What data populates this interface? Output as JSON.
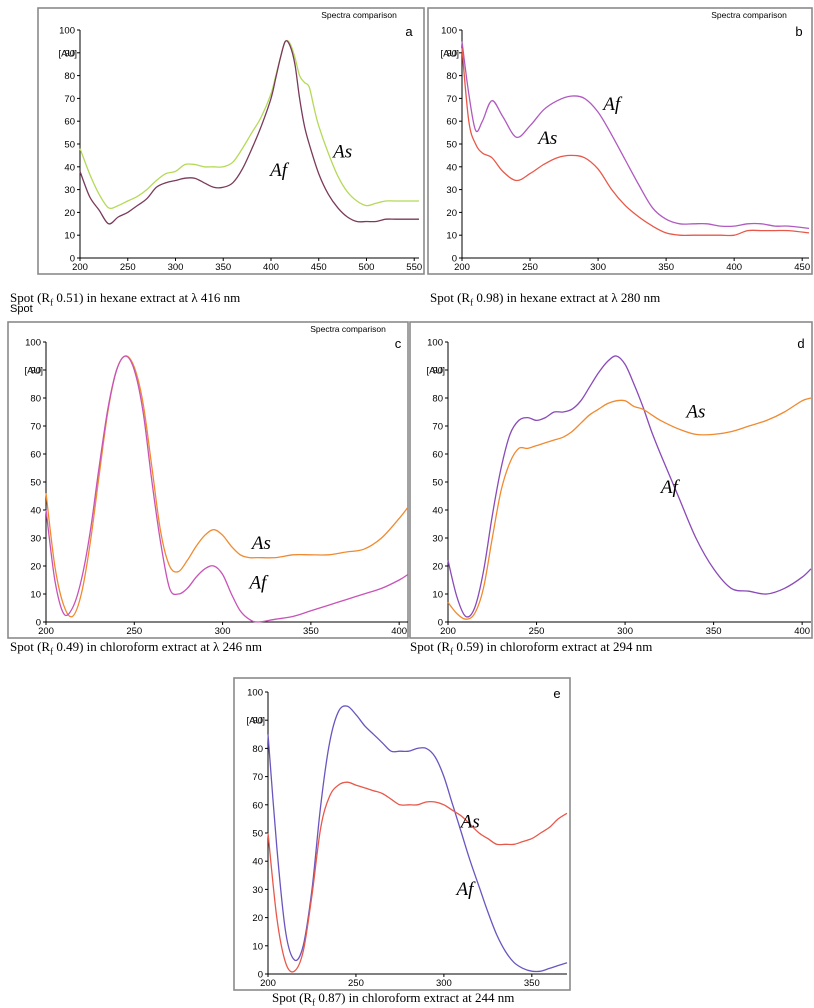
{
  "stray_label": "Spot",
  "chart_data": [
    {
      "type": "line",
      "letter": "a",
      "title": "Spectra comparison",
      "ylabel": "[AU]",
      "xlim": [
        200,
        555
      ],
      "ylim": [
        0,
        100
      ],
      "xticks": [
        200,
        250,
        300,
        350,
        400,
        450,
        500,
        550
      ],
      "yticks": [
        0,
        10,
        20,
        30,
        40,
        50,
        60,
        70,
        80,
        90,
        100
      ],
      "caption": {
        "pre": "Spot (R",
        "sub": "f",
        "post": " 0.51) in hexane extract at λ 416 nm"
      },
      "series": [
        {
          "name": "As",
          "color": "#b5d957",
          "x": [
            200,
            210,
            220,
            230,
            240,
            250,
            260,
            270,
            280,
            290,
            300,
            310,
            320,
            330,
            340,
            350,
            360,
            370,
            380,
            390,
            400,
            405,
            410,
            415,
            420,
            425,
            430,
            435,
            440,
            445,
            450,
            460,
            470,
            480,
            490,
            500,
            510,
            520,
            530,
            540,
            555
          ],
          "y": [
            48,
            37,
            28,
            22,
            23,
            25,
            27,
            30,
            34,
            37,
            38,
            41,
            41,
            40,
            40,
            40,
            42,
            48,
            55,
            62,
            72,
            80,
            88,
            95,
            94,
            88,
            80,
            77,
            75,
            66,
            58,
            46,
            36,
            29,
            25,
            23,
            24,
            25,
            25,
            25,
            25
          ]
        },
        {
          "name": "Af",
          "color": "#7a3a5a",
          "x": [
            200,
            210,
            220,
            230,
            240,
            250,
            260,
            270,
            280,
            290,
            300,
            310,
            320,
            330,
            340,
            350,
            360,
            370,
            380,
            390,
            400,
            405,
            410,
            415,
            420,
            425,
            430,
            435,
            440,
            450,
            460,
            470,
            480,
            490,
            500,
            510,
            520,
            530,
            540,
            555
          ],
          "y": [
            38,
            27,
            21,
            15,
            18,
            20,
            23,
            26,
            31,
            33,
            34,
            35,
            35,
            33,
            31,
            31,
            33,
            39,
            48,
            58,
            70,
            79,
            88,
            95,
            93,
            85,
            70,
            58,
            50,
            37,
            28,
            22,
            18,
            16,
            16,
            16,
            17,
            17,
            17,
            17
          ]
        }
      ],
      "annotations": [
        {
          "text": "As",
          "x": 475,
          "y": 44
        },
        {
          "text": "Af",
          "x": 408,
          "y": 36
        }
      ]
    },
    {
      "type": "line",
      "letter": "b",
      "title": "Spectra comparison",
      "ylabel": "[AU]",
      "xlim": [
        200,
        455
      ],
      "ylim": [
        0,
        100
      ],
      "xticks": [
        200,
        250,
        300,
        350,
        400,
        450
      ],
      "yticks": [
        0,
        10,
        20,
        30,
        40,
        50,
        60,
        70,
        80,
        90,
        100
      ],
      "caption": {
        "pre": "Spot (R",
        "sub": "f",
        "post": " 0.98) in hexane extract at λ 280 nm"
      },
      "series": [
        {
          "name": "Af",
          "color": "#b05ac0",
          "x": [
            200,
            205,
            210,
            215,
            222,
            230,
            240,
            250,
            260,
            270,
            280,
            290,
            300,
            310,
            320,
            330,
            340,
            350,
            360,
            370,
            380,
            390,
            400,
            410,
            420,
            430,
            440,
            455
          ],
          "y": [
            95,
            72,
            56,
            60,
            69,
            62,
            53,
            58,
            65,
            69,
            71,
            70,
            64,
            54,
            43,
            32,
            22,
            17,
            15,
            15,
            15,
            14,
            14,
            15,
            15,
            14,
            14,
            13
          ]
        },
        {
          "name": "As",
          "color": "#e8584a",
          "x": [
            200,
            205,
            210,
            215,
            222,
            230,
            240,
            250,
            260,
            270,
            280,
            290,
            300,
            310,
            320,
            330,
            340,
            350,
            360,
            370,
            380,
            390,
            400,
            410,
            420,
            430,
            440,
            455
          ],
          "y": [
            92,
            60,
            50,
            46,
            44,
            38,
            34,
            37,
            41,
            44,
            45,
            44,
            39,
            30,
            23,
            18,
            14,
            11,
            10,
            10,
            10,
            10,
            10,
            12,
            12,
            12,
            12,
            11
          ]
        }
      ],
      "annotations": [
        {
          "text": "Af",
          "x": 310,
          "y": 65
        },
        {
          "text": "As",
          "x": 263,
          "y": 50
        }
      ]
    },
    {
      "type": "line",
      "letter": "c",
      "title": "Spectra comparison",
      "ylabel": "[AU]",
      "xlim": [
        200,
        405
      ],
      "ylim": [
        0,
        100
      ],
      "xticks": [
        200,
        250,
        300,
        350,
        400
      ],
      "yticks": [
        0,
        10,
        20,
        30,
        40,
        50,
        60,
        70,
        80,
        90,
        100
      ],
      "caption": {
        "pre": "Spot (R",
        "sub": "f",
        "post": " 0.49) in chloroform extract at λ 246 nm"
      },
      "series": [
        {
          "name": "As",
          "color": "#f08a30",
          "x": [
            200,
            205,
            210,
            215,
            220,
            225,
            230,
            235,
            240,
            245,
            250,
            255,
            260,
            265,
            270,
            275,
            280,
            285,
            290,
            295,
            300,
            305,
            310,
            315,
            320,
            330,
            340,
            350,
            360,
            370,
            380,
            390,
            400,
            405
          ],
          "y": [
            46,
            20,
            6,
            2,
            10,
            28,
            52,
            75,
            90,
            95,
            91,
            78,
            55,
            32,
            20,
            18,
            22,
            27,
            31,
            33,
            31,
            27,
            24,
            23,
            23,
            23,
            24,
            24,
            24,
            25,
            26,
            30,
            37,
            41
          ]
        },
        {
          "name": "Af",
          "color": "#c853b8",
          "x": [
            200,
            205,
            210,
            215,
            220,
            225,
            230,
            235,
            240,
            245,
            250,
            255,
            260,
            265,
            270,
            275,
            280,
            285,
            290,
            295,
            300,
            305,
            310,
            315,
            320,
            330,
            340,
            350,
            360,
            370,
            380,
            390,
            400,
            405
          ],
          "y": [
            40,
            15,
            3,
            5,
            15,
            32,
            55,
            76,
            90,
            95,
            90,
            75,
            50,
            28,
            12,
            10,
            12,
            16,
            19,
            20,
            17,
            10,
            4,
            1,
            0,
            1,
            2,
            4,
            6,
            8,
            10,
            12,
            15,
            17
          ]
        }
      ],
      "annotations": [
        {
          "text": "As",
          "x": 322,
          "y": 26
        },
        {
          "text": "Af",
          "x": 320,
          "y": 12
        }
      ]
    },
    {
      "type": "line",
      "letter": "d",
      "title": "",
      "ylabel": "[AU]",
      "xlim": [
        200,
        405
      ],
      "ylim": [
        0,
        100
      ],
      "xticks": [
        200,
        250,
        300,
        350,
        400
      ],
      "yticks": [
        0,
        10,
        20,
        30,
        40,
        50,
        60,
        70,
        80,
        90,
        100
      ],
      "caption": {
        "pre": "Spot (R",
        "sub": "f",
        "post": " 0.59) in chloroform extract at 294 nm"
      },
      "series": [
        {
          "name": "Af",
          "color": "#8a4ab8",
          "x": [
            200,
            205,
            210,
            215,
            220,
            225,
            230,
            235,
            240,
            245,
            250,
            255,
            260,
            265,
            270,
            275,
            280,
            285,
            290,
            295,
            300,
            305,
            310,
            315,
            320,
            330,
            340,
            350,
            360,
            370,
            380,
            390,
            400,
            405
          ],
          "y": [
            22,
            9,
            2,
            5,
            18,
            38,
            55,
            67,
            72,
            73,
            72,
            73,
            75,
            75,
            76,
            79,
            84,
            89,
            93,
            95,
            92,
            85,
            77,
            68,
            60,
            45,
            30,
            19,
            12,
            11,
            10,
            12,
            16,
            19
          ]
        },
        {
          "name": "As",
          "color": "#f08a30",
          "x": [
            200,
            205,
            210,
            215,
            220,
            225,
            230,
            235,
            240,
            245,
            250,
            255,
            260,
            265,
            270,
            275,
            280,
            285,
            290,
            295,
            300,
            305,
            310,
            315,
            320,
            330,
            340,
            350,
            360,
            370,
            380,
            390,
            400,
            405
          ],
          "y": [
            7,
            3,
            1,
            3,
            12,
            30,
            47,
            57,
            62,
            62,
            63,
            64,
            65,
            66,
            68,
            71,
            74,
            76,
            78,
            79,
            79,
            77,
            76,
            74,
            72,
            69,
            67,
            67,
            68,
            70,
            72,
            75,
            79,
            80
          ]
        }
      ],
      "annotations": [
        {
          "text": "As",
          "x": 340,
          "y": 73
        },
        {
          "text": "Af",
          "x": 325,
          "y": 46
        }
      ]
    },
    {
      "type": "line",
      "letter": "e",
      "title": "",
      "ylabel": "[AU]",
      "xlim": [
        200,
        370
      ],
      "ylim": [
        0,
        100
      ],
      "xticks": [
        200,
        250,
        300,
        350
      ],
      "yticks": [
        0,
        10,
        20,
        30,
        40,
        50,
        60,
        70,
        80,
        90,
        100
      ],
      "caption": {
        "pre": "Spot (R",
        "sub": "f",
        "post": " 0.87) in chloroform extract at 244 nm"
      },
      "series": [
        {
          "name": "Af",
          "color": "#6a55c0",
          "x": [
            200,
            205,
            210,
            215,
            220,
            225,
            230,
            235,
            240,
            245,
            250,
            255,
            260,
            265,
            270,
            275,
            280,
            285,
            290,
            295,
            300,
            305,
            310,
            315,
            320,
            325,
            330,
            335,
            340,
            345,
            350,
            355,
            360,
            365,
            370
          ],
          "y": [
            85,
            45,
            15,
            5,
            10,
            30,
            60,
            82,
            93,
            95,
            92,
            88,
            85,
            82,
            79,
            79,
            79,
            80,
            80,
            77,
            70,
            60,
            50,
            40,
            31,
            22,
            14,
            8,
            4,
            2,
            1,
            1,
            2,
            3,
            4
          ]
        },
        {
          "name": "As",
          "color": "#e8584a",
          "x": [
            200,
            205,
            210,
            215,
            220,
            225,
            230,
            235,
            240,
            245,
            250,
            255,
            260,
            265,
            270,
            275,
            280,
            285,
            290,
            295,
            300,
            305,
            310,
            315,
            320,
            325,
            330,
            335,
            340,
            345,
            350,
            355,
            360,
            365,
            370
          ],
          "y": [
            50,
            20,
            4,
            1,
            8,
            28,
            52,
            63,
            67,
            68,
            67,
            66,
            65,
            64,
            62,
            60,
            60,
            60,
            61,
            61,
            60,
            58,
            56,
            53,
            50,
            48,
            46,
            46,
            46,
            47,
            48,
            50,
            52,
            55,
            57
          ]
        }
      ],
      "annotations": [
        {
          "text": "As",
          "x": 315,
          "y": 52
        },
        {
          "text": "Af",
          "x": 312,
          "y": 28
        }
      ]
    }
  ]
}
